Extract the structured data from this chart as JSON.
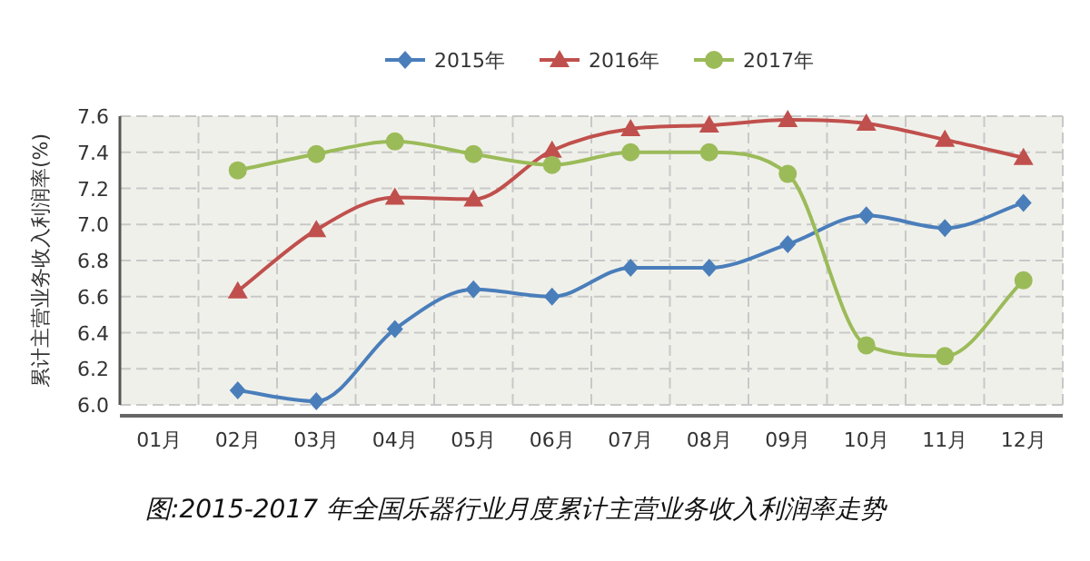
{
  "chart_data": {
    "type": "line",
    "title": "图:2015-2017 年全国乐器行业月度累计主营业务收入利润率走势",
    "ylabel": "累计主营业务收入利润率(%)",
    "categories": [
      "01月",
      "02月",
      "03月",
      "04月",
      "05月",
      "06月",
      "07月",
      "08月",
      "09月",
      "10月",
      "11月",
      "12月"
    ],
    "ylim": [
      6.0,
      7.6
    ],
    "yticks": [
      {
        "value": 6.0,
        "label": "6.0"
      },
      {
        "value": 6.2,
        "label": "6.2"
      },
      {
        "value": 6.4,
        "label": "6.4"
      },
      {
        "value": 6.6,
        "label": "6.6"
      },
      {
        "value": 6.8,
        "label": "6.8"
      },
      {
        "value": 7.0,
        "label": "7.0"
      },
      {
        "value": 7.2,
        "label": "7.2"
      },
      {
        "value": 7.4,
        "label": "7.4"
      },
      {
        "value": 7.6,
        "label": "7.6"
      }
    ],
    "grid": true,
    "legend": "top",
    "line_style": "solid",
    "series": [
      {
        "name": "2015年",
        "color": "#4a7ebb",
        "marker": "diamond",
        "values": [
          null,
          6.08,
          6.02,
          6.42,
          6.64,
          6.6,
          6.76,
          6.76,
          6.89,
          7.05,
          6.98,
          7.12
        ]
      },
      {
        "name": "2016年",
        "color": "#c0504d",
        "marker": "triangle",
        "values": [
          null,
          6.63,
          6.97,
          7.15,
          7.14,
          7.41,
          7.53,
          7.55,
          7.58,
          7.56,
          7.47,
          7.37
        ]
      },
      {
        "name": "2017年",
        "color": "#9bbb59",
        "marker": "circle",
        "values": [
          null,
          7.3,
          7.39,
          7.46,
          7.39,
          7.33,
          7.4,
          7.4,
          7.28,
          6.33,
          6.27,
          6.69
        ]
      }
    ]
  }
}
